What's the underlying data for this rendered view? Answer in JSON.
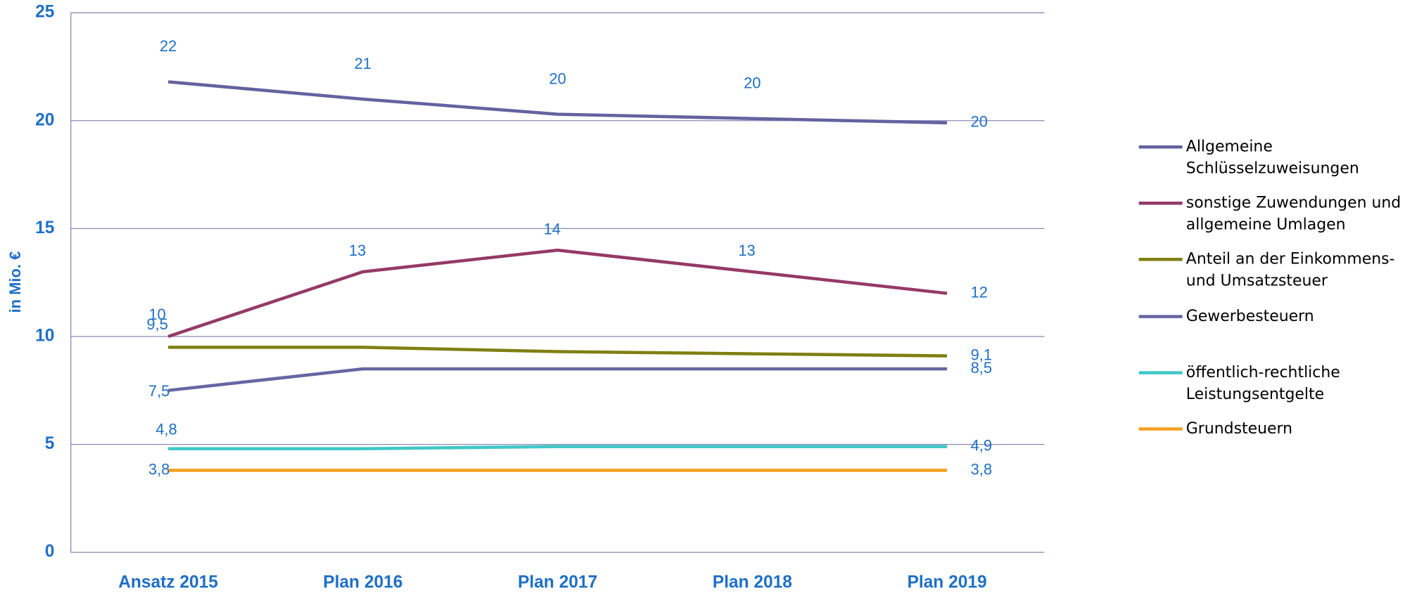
{
  "chart_data": {
    "type": "line",
    "y_label": "in Mio. €",
    "categories": [
      "Ansatz 2015",
      "Plan 2016",
      "Plan 2017",
      "Plan 2018",
      "Plan 2019"
    ],
    "ylim": [
      0,
      25
    ],
    "yticks": [
      0,
      5,
      10,
      15,
      20,
      25
    ],
    "grid": true,
    "legend": "right",
    "series": [
      {
        "name": "Allgemeine Schlüsselzuweisungen",
        "color": "#6462a0",
        "values": [
          21.8,
          21.0,
          20.3,
          20.1,
          19.9
        ],
        "value_labels": [
          "22",
          "21",
          "20",
          "20",
          "20"
        ]
      },
      {
        "name": "sonstige Zuwendungen und allgemeine Umlagen",
        "color": "#953a66",
        "values": [
          10,
          13,
          14,
          13,
          12
        ]
      },
      {
        "name": "Anteil an der Einkommens- und Umsatzsteuer",
        "color": "#7f7f12",
        "values": [
          9.5,
          9.5,
          9.3,
          9.2,
          9.1
        ],
        "value_labels": [
          "9,5",
          null,
          null,
          null,
          "9,1"
        ]
      },
      {
        "name": "Gewerbesteuern",
        "color": "#6666a2",
        "values": [
          7.5,
          8.5,
          8.5,
          8.5,
          8.5
        ],
        "value_labels": [
          "7,5",
          null,
          null,
          null,
          "8,5"
        ]
      },
      {
        "name": "öffentlich-rechtliche Leistungsentgelte",
        "color": "#3fc8c6",
        "values": [
          4.8,
          4.8,
          4.9,
          4.9,
          4.9
        ],
        "value_labels": [
          "4,8",
          null,
          null,
          null,
          "4,9"
        ]
      },
      {
        "name": "Grundsteuern",
        "color": "#f5a01e",
        "values": [
          3.8,
          3.8,
          3.8,
          3.8,
          3.8
        ],
        "value_labels": [
          "3,8",
          null,
          null,
          null,
          "3,8"
        ]
      }
    ]
  }
}
